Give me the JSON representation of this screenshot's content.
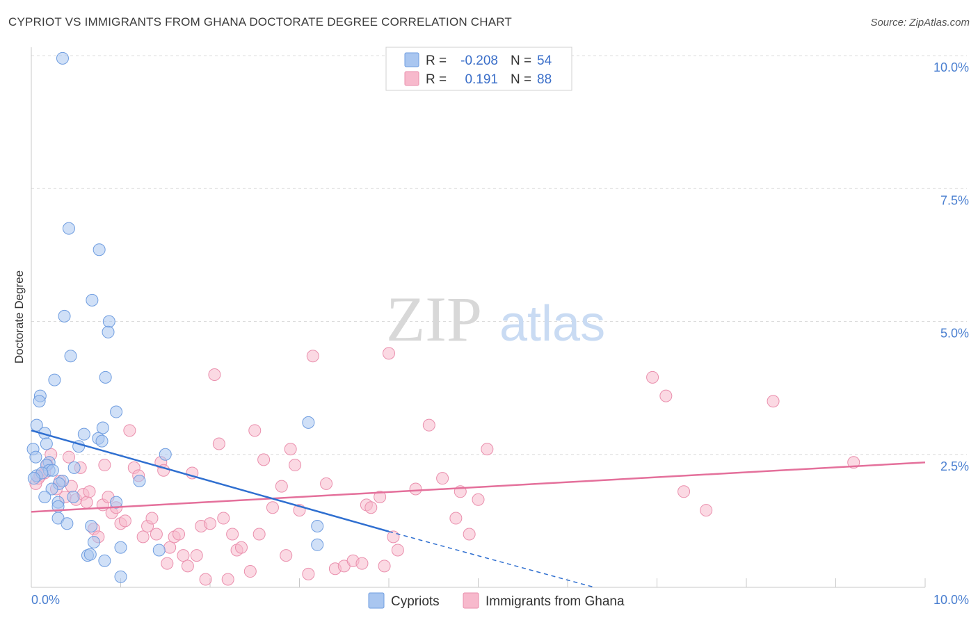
{
  "title": "CYPRIOT VS IMMIGRANTS FROM GHANA DOCTORATE DEGREE CORRELATION CHART",
  "source": "Source: ZipAtlas.com",
  "watermark": {
    "zip": "ZIP",
    "atlas": "atlas"
  },
  "colors": {
    "blue_fill": "#a9c6f0",
    "blue_stroke": "#6f9de0",
    "blue_line": "#2f6fd0",
    "pink_fill": "#f7b9cc",
    "pink_stroke": "#ea8fad",
    "pink_line": "#e4709b",
    "grid": "#dcdcdc",
    "tick": "#4a7fd0"
  },
  "legend": {
    "rows": [
      {
        "r_label": "R =",
        "r_value": "-0.208",
        "n_label": "N =",
        "n_value": "54"
      },
      {
        "r_label": "R =",
        "r_value": "0.191",
        "n_label": "N =",
        "n_value": "88"
      }
    ]
  },
  "chart_data": {
    "type": "scatter",
    "title": "CYPRIOT VS IMMIGRANTS FROM GHANA DOCTORATE DEGREE CORRELATION CHART",
    "xlabel": "",
    "ylabel": "Doctorate Degree",
    "xlim": [
      0,
      10
    ],
    "ylim": [
      0,
      10
    ],
    "x_tick_labels": [
      "0.0%",
      "10.0%"
    ],
    "y_tick_labels": [
      "2.5%",
      "5.0%",
      "7.5%",
      "10.0%"
    ],
    "y_ticks": [
      2.5,
      5.0,
      7.5,
      10.0
    ],
    "series": [
      {
        "name": "Cypriots",
        "R": -0.208,
        "N": 54,
        "trend": {
          "x0": 0.0,
          "y0": 2.95,
          "x1": 4.0,
          "y1": 1.05,
          "dash_to_x": 6.3,
          "dash_to_y": -0.05
        },
        "points": [
          [
            0.35,
            9.95
          ],
          [
            0.42,
            6.75
          ],
          [
            0.76,
            6.35
          ],
          [
            0.68,
            5.4
          ],
          [
            0.37,
            5.1
          ],
          [
            0.87,
            5.0
          ],
          [
            0.86,
            4.8
          ],
          [
            0.44,
            4.35
          ],
          [
            0.26,
            3.9
          ],
          [
            0.83,
            3.95
          ],
          [
            0.1,
            3.6
          ],
          [
            0.09,
            3.5
          ],
          [
            0.95,
            3.3
          ],
          [
            0.06,
            3.05
          ],
          [
            0.8,
            3.0
          ],
          [
            0.15,
            2.9
          ],
          [
            0.59,
            2.88
          ],
          [
            0.75,
            2.8
          ],
          [
            0.79,
            2.75
          ],
          [
            0.17,
            2.7
          ],
          [
            0.53,
            2.65
          ],
          [
            0.02,
            2.6
          ],
          [
            0.05,
            2.45
          ],
          [
            1.5,
            2.5
          ],
          [
            0.2,
            2.35
          ],
          [
            0.17,
            2.3
          ],
          [
            0.48,
            2.25
          ],
          [
            0.2,
            2.2
          ],
          [
            0.24,
            2.2
          ],
          [
            0.06,
            2.1
          ],
          [
            0.12,
            2.15
          ],
          [
            0.35,
            2.0
          ],
          [
            0.31,
            1.95
          ],
          [
            0.03,
            2.05
          ],
          [
            1.21,
            2.0
          ],
          [
            0.23,
            1.85
          ],
          [
            0.15,
            1.7
          ],
          [
            0.47,
            1.7
          ],
          [
            0.95,
            1.6
          ],
          [
            0.3,
            1.6
          ],
          [
            0.3,
            1.52
          ],
          [
            0.3,
            1.3
          ],
          [
            0.4,
            1.2
          ],
          [
            0.67,
            1.15
          ],
          [
            0.7,
            0.85
          ],
          [
            0.63,
            0.6
          ],
          [
            0.66,
            0.62
          ],
          [
            0.82,
            0.5
          ],
          [
            1.0,
            0.75
          ],
          [
            1.43,
            0.7
          ],
          [
            3.1,
            3.1
          ],
          [
            3.2,
            1.15
          ],
          [
            3.2,
            0.8
          ],
          [
            1.0,
            0.2
          ]
        ]
      },
      {
        "name": "Immigrants from Ghana",
        "R": 0.191,
        "N": 88,
        "trend": {
          "x0": 0.0,
          "y0": 1.42,
          "x1": 10.0,
          "y1": 2.35
        },
        "points": [
          [
            0.05,
            1.95
          ],
          [
            0.1,
            2.1
          ],
          [
            0.15,
            2.15
          ],
          [
            0.18,
            2.3
          ],
          [
            0.22,
            2.5
          ],
          [
            0.28,
            1.85
          ],
          [
            0.32,
            2.0
          ],
          [
            0.38,
            1.7
          ],
          [
            0.42,
            2.45
          ],
          [
            0.45,
            1.9
          ],
          [
            0.5,
            1.65
          ],
          [
            0.55,
            2.25
          ],
          [
            0.58,
            1.75
          ],
          [
            0.62,
            1.6
          ],
          [
            0.65,
            1.8
          ],
          [
            0.7,
            1.1
          ],
          [
            0.75,
            0.95
          ],
          [
            0.8,
            1.55
          ],
          [
            0.82,
            2.3
          ],
          [
            0.86,
            1.7
          ],
          [
            0.9,
            1.4
          ],
          [
            0.95,
            1.5
          ],
          [
            1.0,
            1.2
          ],
          [
            1.05,
            1.25
          ],
          [
            1.1,
            2.95
          ],
          [
            1.15,
            2.25
          ],
          [
            1.2,
            2.1
          ],
          [
            1.25,
            0.95
          ],
          [
            1.3,
            1.15
          ],
          [
            1.35,
            1.3
          ],
          [
            1.4,
            1.0
          ],
          [
            1.45,
            2.35
          ],
          [
            1.48,
            2.2
          ],
          [
            1.52,
            0.45
          ],
          [
            1.55,
            0.75
          ],
          [
            1.6,
            0.95
          ],
          [
            1.65,
            1.0
          ],
          [
            1.7,
            0.6
          ],
          [
            1.75,
            0.4
          ],
          [
            1.8,
            2.15
          ],
          [
            1.85,
            0.6
          ],
          [
            1.9,
            1.15
          ],
          [
            1.95,
            0.15
          ],
          [
            2.0,
            1.2
          ],
          [
            2.05,
            4.0
          ],
          [
            2.1,
            2.7
          ],
          [
            2.15,
            1.3
          ],
          [
            2.2,
            0.15
          ],
          [
            2.25,
            1.0
          ],
          [
            2.3,
            0.7
          ],
          [
            2.35,
            0.75
          ],
          [
            2.45,
            0.3
          ],
          [
            2.5,
            2.95
          ],
          [
            2.55,
            1.0
          ],
          [
            2.6,
            2.4
          ],
          [
            2.7,
            1.5
          ],
          [
            2.8,
            1.9
          ],
          [
            2.85,
            0.6
          ],
          [
            2.9,
            2.6
          ],
          [
            2.95,
            2.3
          ],
          [
            3.0,
            1.45
          ],
          [
            3.1,
            0.25
          ],
          [
            3.15,
            4.35
          ],
          [
            3.3,
            1.95
          ],
          [
            3.4,
            0.35
          ],
          [
            3.5,
            0.4
          ],
          [
            3.6,
            0.5
          ],
          [
            3.7,
            0.45
          ],
          [
            3.75,
            1.55
          ],
          [
            3.8,
            1.5
          ],
          [
            3.9,
            1.7
          ],
          [
            3.95,
            0.4
          ],
          [
            4.0,
            4.4
          ],
          [
            4.05,
            0.95
          ],
          [
            4.1,
            0.7
          ],
          [
            4.3,
            1.85
          ],
          [
            4.45,
            3.05
          ],
          [
            4.6,
            2.05
          ],
          [
            4.75,
            1.3
          ],
          [
            4.8,
            1.8
          ],
          [
            4.9,
            1.0
          ],
          [
            5.0,
            1.65
          ],
          [
            5.1,
            2.6
          ],
          [
            6.95,
            3.95
          ],
          [
            7.1,
            3.6
          ],
          [
            8.3,
            3.5
          ],
          [
            7.3,
            1.8
          ],
          [
            7.55,
            1.45
          ],
          [
            9.2,
            2.35
          ],
          [
            0.08,
            2.05
          ]
        ]
      }
    ]
  },
  "bottom_legend": [
    {
      "label": "Cypriots"
    },
    {
      "label": "Immigrants from Ghana"
    }
  ]
}
